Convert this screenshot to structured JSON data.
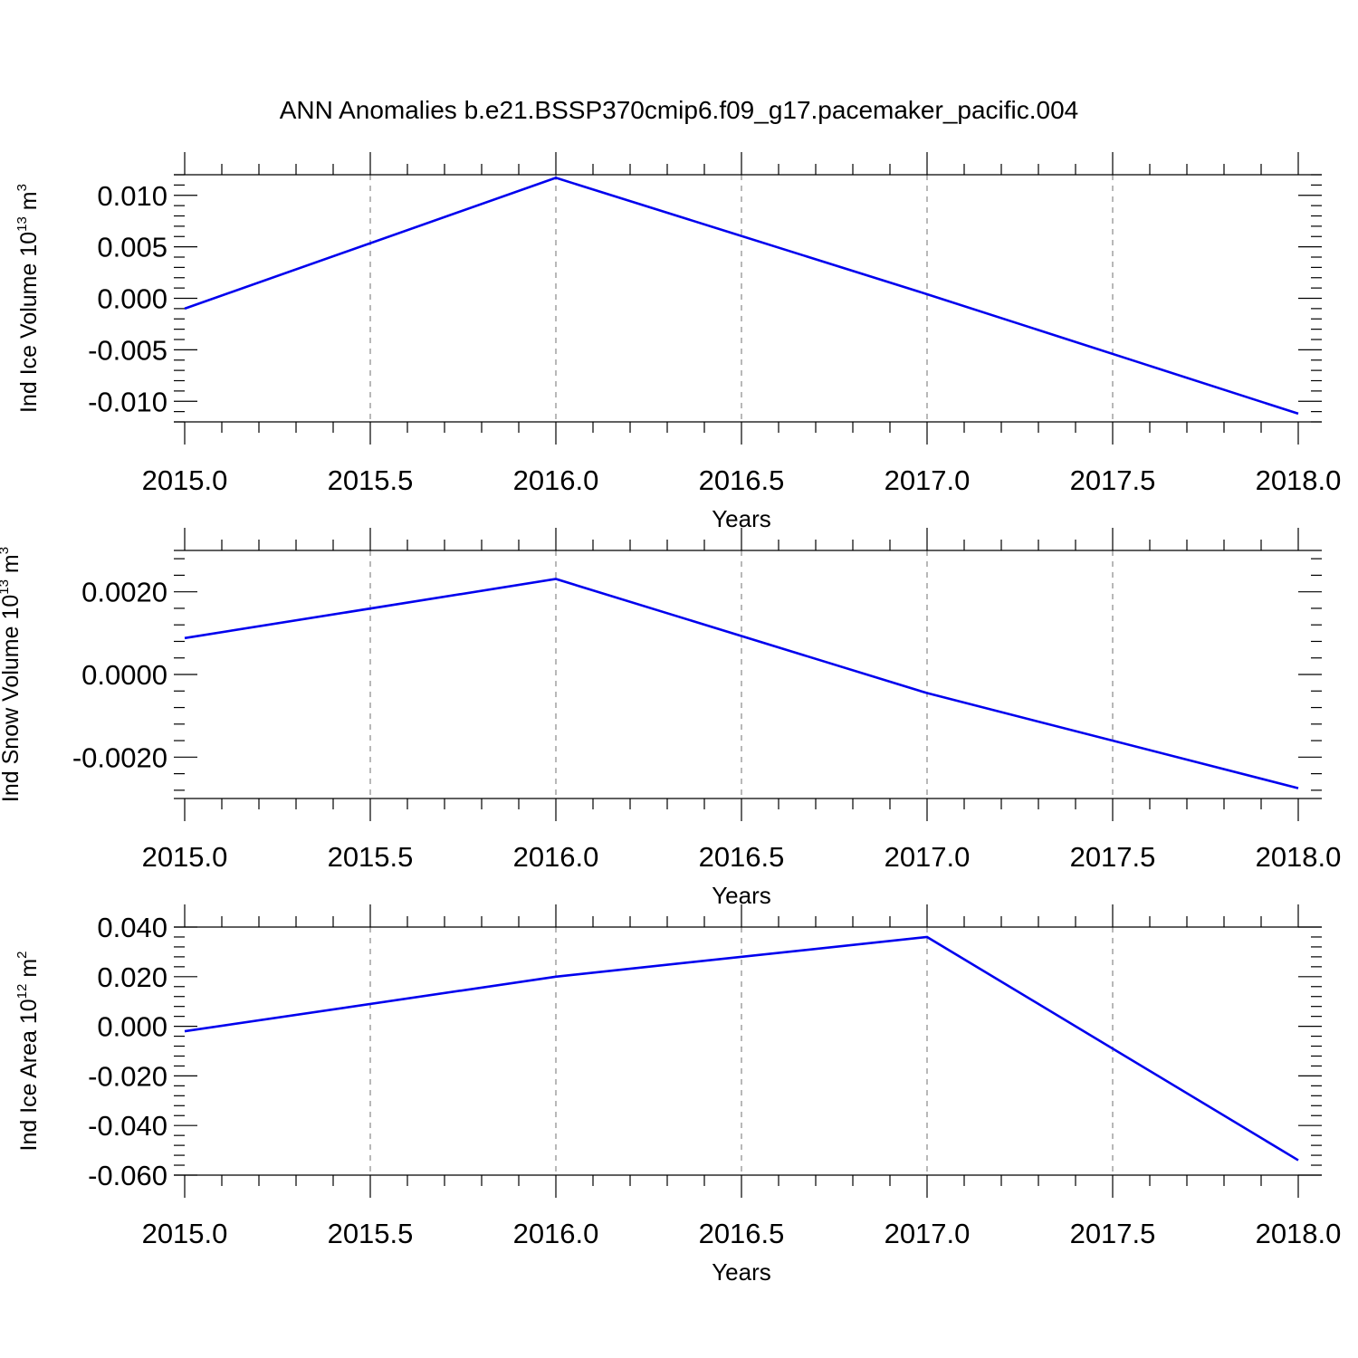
{
  "title": "ANN Anomalies b.e21.BSSP370cmip6.f09_g17.pacemaker_pacific.004",
  "colors": {
    "line": "#0000ee",
    "axis": "#000000",
    "grid": "#888888"
  },
  "chart_data": [
    {
      "type": "line",
      "xlabel": "Years",
      "ylabel_prefix": "Ind Ice Volume 10",
      "ylabel_exp": "13",
      "ylabel_unit": " m",
      "ylabel_unit_exp": "3",
      "xlim": [
        2015.0,
        2018.0
      ],
      "ylim": [
        -0.012,
        0.012
      ],
      "xticks": [
        2015.0,
        2015.5,
        2016.0,
        2016.5,
        2017.0,
        2017.5,
        2018.0
      ],
      "xtick_labels": [
        "2015.0",
        "2015.5",
        "2016.0",
        "2016.5",
        "2017.0",
        "2017.5",
        "2018.0"
      ],
      "yticks": [
        0.01,
        0.005,
        0.0,
        -0.005,
        -0.01
      ],
      "ytick_labels": [
        "0.010",
        "0.005",
        "0.000",
        "-0.005",
        "-0.010"
      ],
      "grid": "vertical dashed",
      "series": [
        {
          "x": [
            2015,
            2016,
            2017,
            2018
          ],
          "values": [
            -0.001,
            0.0117,
            0.0004,
            -0.0112
          ]
        }
      ]
    },
    {
      "type": "line",
      "xlabel": "Years",
      "ylabel_prefix": "Ind Snow Volume 10",
      "ylabel_exp": "13",
      "ylabel_unit": " m",
      "ylabel_unit_exp": "3",
      "xlim": [
        2015.0,
        2018.0
      ],
      "ylim": [
        -0.003,
        0.003
      ],
      "xticks": [
        2015.0,
        2015.5,
        2016.0,
        2016.5,
        2017.0,
        2017.5,
        2018.0
      ],
      "xtick_labels": [
        "2015.0",
        "2015.5",
        "2016.0",
        "2016.5",
        "2017.0",
        "2017.5",
        "2018.0"
      ],
      "yticks": [
        0.002,
        0.0,
        -0.002
      ],
      "ytick_labels": [
        "0.0020",
        "0.0000",
        "-0.0020"
      ],
      "grid": "vertical dashed",
      "series": [
        {
          "x": [
            2015,
            2016,
            2017,
            2018
          ],
          "values": [
            0.00088,
            0.00231,
            -0.00045,
            -0.00275
          ]
        }
      ]
    },
    {
      "type": "line",
      "xlabel": "Years",
      "ylabel_prefix": "Ind Ice Area 10",
      "ylabel_exp": "12",
      "ylabel_unit": " m",
      "ylabel_unit_exp": "2",
      "xlim": [
        2015.0,
        2018.0
      ],
      "ylim": [
        -0.06,
        0.04
      ],
      "xticks": [
        2015.0,
        2015.5,
        2016.0,
        2016.5,
        2017.0,
        2017.5,
        2018.0
      ],
      "xtick_labels": [
        "2015.0",
        "2015.5",
        "2016.0",
        "2016.5",
        "2017.0",
        "2017.5",
        "2018.0"
      ],
      "yticks": [
        0.04,
        0.02,
        0.0,
        -0.02,
        -0.04,
        -0.06
      ],
      "ytick_labels": [
        "0.040",
        "0.020",
        "0.000",
        "-0.020",
        "-0.040",
        "-0.060"
      ],
      "grid": "vertical dashed",
      "series": [
        {
          "x": [
            2015,
            2016,
            2017,
            2018
          ],
          "values": [
            -0.002,
            0.02,
            0.036,
            -0.054
          ]
        }
      ]
    }
  ]
}
